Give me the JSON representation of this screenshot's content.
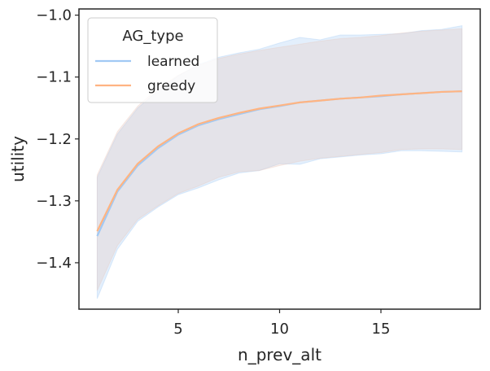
{
  "chart_data": {
    "type": "line",
    "xlabel": "n_prev_alt",
    "ylabel": "utility",
    "xlim": [
      0.1,
      19.9
    ],
    "ylim": [
      -1.475,
      -0.99
    ],
    "x_ticks": [
      5,
      10,
      15
    ],
    "x_tick_labels": [
      "5",
      "10",
      "15"
    ],
    "y_ticks": [
      -1.4,
      -1.3,
      -1.2,
      -1.1,
      -1.0
    ],
    "y_tick_labels": [
      "−1.4",
      "−1.3",
      "−1.2",
      "−1.1",
      "−1.0"
    ],
    "grid": false,
    "legend": {
      "title": "AG_type",
      "placement": "top-left"
    },
    "x": [
      1,
      2,
      3,
      4,
      5,
      6,
      7,
      8,
      9,
      10,
      11,
      12,
      13,
      14,
      15,
      16,
      17,
      18,
      19
    ],
    "series": [
      {
        "name": "learned",
        "color": "#a1c9f4",
        "band_color": "#a1c9f4",
        "values": [
          -1.357,
          -1.285,
          -1.243,
          -1.215,
          -1.193,
          -1.178,
          -1.168,
          -1.16,
          -1.152,
          -1.147,
          -1.141,
          -1.138,
          -1.135,
          -1.133,
          -1.131,
          -1.128,
          -1.126,
          -1.124,
          -1.123
        ],
        "lower": [
          -1.458,
          -1.378,
          -1.333,
          -1.31,
          -1.29,
          -1.279,
          -1.266,
          -1.255,
          -1.251,
          -1.24,
          -1.241,
          -1.232,
          -1.229,
          -1.226,
          -1.224,
          -1.219,
          -1.219,
          -1.22,
          -1.221
        ],
        "upper": [
          -1.262,
          -1.192,
          -1.15,
          -1.122,
          -1.098,
          -1.08,
          -1.068,
          -1.061,
          -1.055,
          -1.045,
          -1.036,
          -1.04,
          -1.032,
          -1.032,
          -1.031,
          -1.03,
          -1.025,
          -1.023,
          -1.017
        ]
      },
      {
        "name": "greedy",
        "color": "#ffb482",
        "band_color": "#e8c8bc",
        "values": [
          -1.349,
          -1.282,
          -1.24,
          -1.212,
          -1.191,
          -1.176,
          -1.166,
          -1.158,
          -1.151,
          -1.146,
          -1.141,
          -1.138,
          -1.135,
          -1.133,
          -1.13,
          -1.128,
          -1.126,
          -1.124,
          -1.123
        ],
        "lower": [
          -1.445,
          -1.372,
          -1.33,
          -1.308,
          -1.288,
          -1.276,
          -1.262,
          -1.253,
          -1.251,
          -1.243,
          -1.236,
          -1.231,
          -1.228,
          -1.225,
          -1.222,
          -1.217,
          -1.216,
          -1.216,
          -1.217
        ],
        "upper": [
          -1.258,
          -1.188,
          -1.147,
          -1.118,
          -1.097,
          -1.081,
          -1.07,
          -1.063,
          -1.057,
          -1.052,
          -1.047,
          -1.042,
          -1.038,
          -1.036,
          -1.033,
          -1.029,
          -1.026,
          -1.024,
          -1.022
        ]
      }
    ]
  }
}
